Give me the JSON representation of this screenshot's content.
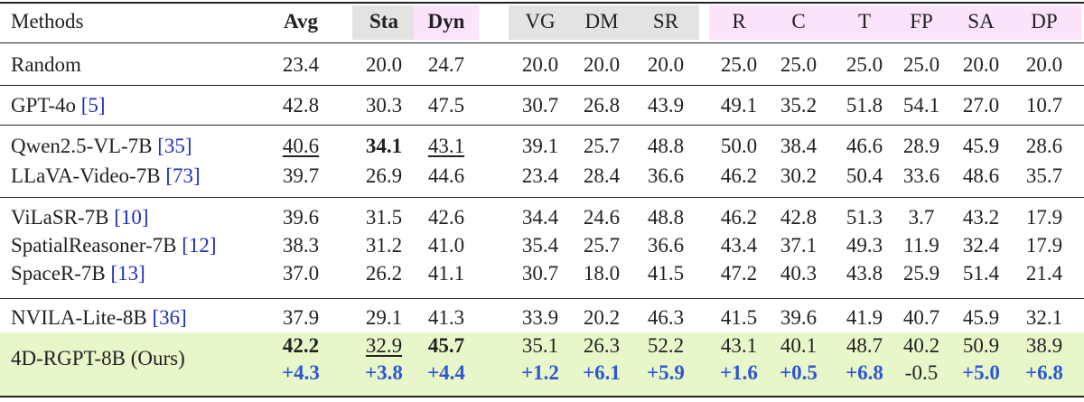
{
  "table": {
    "header": [
      "Methods",
      "Avg",
      "Sta",
      "Dyn",
      "VG",
      "DM",
      "SR",
      "R",
      "C",
      "T",
      "FP",
      "SA",
      "DP"
    ],
    "groups": [
      [
        {
          "method": "Random",
          "values": [
            "23.4",
            "20.0",
            "24.7",
            "20.0",
            "20.0",
            "20.0",
            "25.0",
            "25.0",
            "25.0",
            "25.0",
            "20.0",
            "20.0"
          ]
        }
      ],
      [
        {
          "method": "GPT-4o",
          "cite": "[5]",
          "values": [
            "42.8",
            "30.3",
            "47.5",
            "30.7",
            "26.8",
            "43.9",
            "49.1",
            "35.2",
            "51.8",
            "54.1",
            "27.0",
            "10.7"
          ]
        }
      ],
      [
        {
          "method": "Qwen2.5-VL-7B",
          "cite": "[35]",
          "values": [
            {
              "text": "40.6",
              "style": "underline"
            },
            {
              "text": "34.1",
              "style": "bold"
            },
            {
              "text": "43.1",
              "style": "underline"
            },
            "39.1",
            "25.7",
            "48.8",
            "50.0",
            "38.4",
            "46.6",
            "28.9",
            "45.9",
            "28.6"
          ]
        },
        {
          "method": "LLaVA-Video-7B",
          "cite": "[73]",
          "values": [
            "39.7",
            "26.9",
            "44.6",
            "23.4",
            "28.4",
            "36.6",
            "46.2",
            "30.2",
            "50.4",
            "33.6",
            "48.6",
            "35.7"
          ]
        }
      ],
      [
        {
          "method": "ViLaSR-7B",
          "cite": "[10]",
          "values": [
            "39.6",
            "31.5",
            "42.6",
            "34.4",
            "24.6",
            "48.8",
            "46.2",
            "42.8",
            "51.3",
            "3.7",
            "43.2",
            "17.9"
          ]
        },
        {
          "method": "SpatialReasoner-7B",
          "cite": "[12]",
          "values": [
            "38.3",
            "31.2",
            "41.0",
            "35.4",
            "25.7",
            "36.6",
            "43.4",
            "37.1",
            "49.3",
            "11.9",
            "32.4",
            "17.9"
          ]
        },
        {
          "method": "SpaceR-7B",
          "cite": "[13]",
          "values": [
            "37.0",
            "26.2",
            "41.1",
            "30.7",
            "18.0",
            "41.5",
            "47.2",
            "40.3",
            "43.8",
            "25.9",
            "51.4",
            "21.4"
          ]
        }
      ],
      [
        {
          "method": "NVILA-Lite-8B",
          "cite": "[36]",
          "values": [
            "37.9",
            "29.1",
            "41.3",
            "33.9",
            "20.2",
            "46.3",
            "41.5",
            "39.6",
            "41.9",
            "40.7",
            "45.9",
            "32.1"
          ]
        }
      ]
    ],
    "ours": {
      "method": "4D-RGPT-8B (Ours)",
      "values": [
        {
          "text": "42.2",
          "style": "bold"
        },
        {
          "text": "32.9",
          "style": "underline"
        },
        {
          "text": "45.7",
          "style": "bold"
        },
        "35.1",
        "26.3",
        "52.2",
        "43.1",
        "40.1",
        "48.7",
        "40.2",
        "50.9",
        "38.9"
      ],
      "gains": [
        "+4.3",
        "+3.8",
        "+4.4",
        "+1.2",
        "+6.1",
        "+5.9",
        "+1.6",
        "+0.5",
        "+6.8",
        {
          "text": "-0.5",
          "style": "plain"
        },
        "+5.0",
        "+6.8"
      ]
    }
  }
}
